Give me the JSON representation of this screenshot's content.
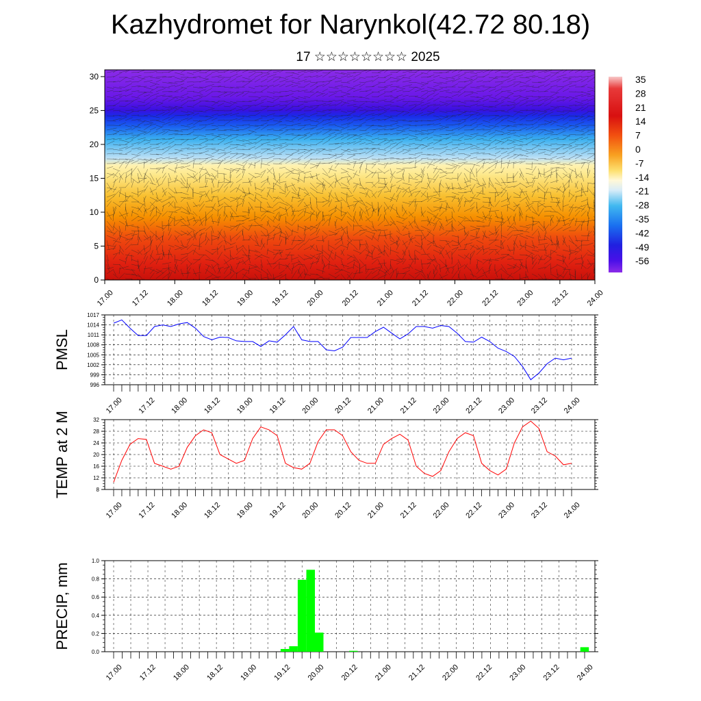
{
  "title": "Kazhydromet for Narynkol(42.72 80.18)",
  "subtitle": "17 ☆☆☆☆☆☆☆☆ 2025",
  "chart_data": [
    {
      "type": "heatmap",
      "description_axis": "height",
      "yticks": [
        "0",
        "5",
        "10",
        "15",
        "20",
        "25",
        "30"
      ],
      "ylim": [
        0,
        31
      ],
      "xticks": [
        "17.00",
        "17.12",
        "18.00",
        "18.12",
        "19.00",
        "19.12",
        "20.00",
        "20.12",
        "21.00",
        "21.12",
        "22.00",
        "22.12",
        "23.00",
        "23.12",
        "24.00"
      ],
      "colorbar": {
        "labels": [
          "35",
          "28",
          "21",
          "14",
          "7",
          "0",
          "-7",
          "-14",
          "-21",
          "-28",
          "-35",
          "-42",
          "-49",
          "-56"
        ]
      },
      "colors": {
        "top": "#8b2be8",
        "violet": "#4a10e8",
        "blue": "#1a50f0",
        "cyan": "#3ab0f0",
        "lightblue": "#bce0f5",
        "yellow": "#fde88a",
        "orange": "#f6a000",
        "red": "#e82a12",
        "darkred": "#c8100a"
      }
    },
    {
      "type": "line",
      "ylabel": "PMSL",
      "yticks": [
        "996",
        "999",
        "1002",
        "1005",
        "1008",
        "1011",
        "1014",
        "1017"
      ],
      "ylim": [
        996,
        1017
      ],
      "xticks": [
        "17.00",
        "17.12",
        "18.00",
        "18.12",
        "19.00",
        "19.12",
        "20.00",
        "20.12",
        "21.00",
        "21.12",
        "22.00",
        "22.12",
        "23.00",
        "23.12",
        "24.00"
      ],
      "color": "#0000ff",
      "values": [
        1014.5,
        1015.5,
        1013.0,
        1010.8,
        1010.8,
        1013.5,
        1014.0,
        1013.5,
        1014.3,
        1014.7,
        1013.0,
        1010.5,
        1009.5,
        1010.3,
        1010.2,
        1009.2,
        1009.0,
        1009.0,
        1007.5,
        1009.2,
        1008.8,
        1011.0,
        1013.5,
        1009.5,
        1009.0,
        1009.0,
        1006.5,
        1006.2,
        1007.3,
        1010.2,
        1010.2,
        1010.2,
        1012.0,
        1013.3,
        1011.5,
        1009.8,
        1011.3,
        1013.5,
        1013.5,
        1013.0,
        1013.8,
        1013.5,
        1011.5,
        1009.0,
        1008.8,
        1010.3,
        1009.0,
        1007.0,
        1006.0,
        1004.5,
        1001.5,
        997.5,
        999.5,
        1002.3,
        1004.0,
        1003.5,
        1004.0
      ]
    },
    {
      "type": "line",
      "ylabel": "TEMP at 2 M",
      "yticks": [
        "8",
        "12",
        "16",
        "20",
        "24",
        "28",
        "32"
      ],
      "ylim": [
        8,
        32
      ],
      "xticks": [
        "17.00",
        "17.12",
        "18.00",
        "18.12",
        "19.00",
        "19.12",
        "20.00",
        "20.12",
        "21.00",
        "21.12",
        "22.00",
        "22.12",
        "23.00",
        "23.12",
        "24.00"
      ],
      "color": "#ff0000",
      "values": [
        10.5,
        18.0,
        23.5,
        25.5,
        25.2,
        17.0,
        16.0,
        15.0,
        16.0,
        22.5,
        26.5,
        28.5,
        27.5,
        20.0,
        18.5,
        17.0,
        18.0,
        25.5,
        29.5,
        28.5,
        26.5,
        17.0,
        15.5,
        15.0,
        17.0,
        24.5,
        28.5,
        28.5,
        26.5,
        21.0,
        18.0,
        17.0,
        17.0,
        23.5,
        25.5,
        27.0,
        25.0,
        16.0,
        13.5,
        12.5,
        14.5,
        21.0,
        25.5,
        27.5,
        26.5,
        17.0,
        14.5,
        13.0,
        15.0,
        24.0,
        29.5,
        31.5,
        29.0,
        21.0,
        19.5,
        16.5,
        17.0
      ]
    },
    {
      "type": "bar",
      "ylabel": "PRECIP, mm",
      "yticks": [
        "0.0",
        "0.2",
        "0.4",
        "0.6",
        "0.8",
        "1.0"
      ],
      "ylim": [
        0,
        1.0
      ],
      "xticks": [
        "17.00",
        "17.12",
        "18.00",
        "18.12",
        "19.00",
        "19.12",
        "20.00",
        "20.12",
        "21.00",
        "21.12",
        "22.00",
        "22.12",
        "23.00",
        "23.12",
        "24.00"
      ],
      "color": "#00ff00",
      "values": [
        0,
        0,
        0,
        0,
        0,
        0,
        0,
        0,
        0,
        0,
        0,
        0,
        0,
        0,
        0,
        0,
        0,
        0,
        0,
        0,
        0.03,
        0.06,
        0.79,
        0.9,
        0.21,
        0,
        0,
        0,
        0.01,
        0,
        0,
        0,
        0,
        0,
        0,
        0,
        0,
        0,
        0,
        0,
        0,
        0,
        0,
        0,
        0,
        0,
        0,
        0,
        0,
        0,
        0,
        0,
        0,
        0,
        0,
        0.05
      ]
    }
  ]
}
